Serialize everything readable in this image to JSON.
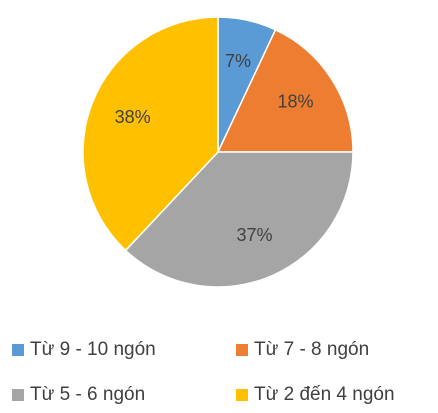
{
  "chart_data": {
    "type": "pie",
    "categories": [
      "Từ 9 - 10 ngón",
      "Từ 7 - 8 ngón",
      "Từ 5 - 6 ngón",
      "Từ 2 đến 4 ngón"
    ],
    "values": [
      7,
      18,
      37,
      38
    ],
    "value_labels": [
      "7%",
      "18%",
      "37%",
      "38%"
    ],
    "colors": [
      "#5b9bd5",
      "#ed7d31",
      "#a5a5a5",
      "#ffc000"
    ]
  }
}
